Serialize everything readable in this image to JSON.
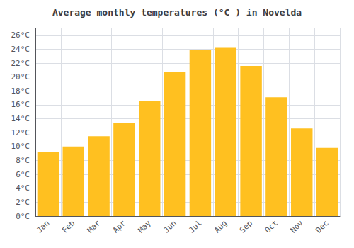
{
  "chart_data": {
    "type": "bar",
    "title": "Average monthly temperatures (°C ) in Novelda",
    "categories": [
      "Jan",
      "Feb",
      "Mar",
      "Apr",
      "May",
      "Jun",
      "Jul",
      "Aug",
      "Sep",
      "Oct",
      "Nov",
      "Dec"
    ],
    "values": [
      9.2,
      10.0,
      11.5,
      13.4,
      16.6,
      20.7,
      23.9,
      24.2,
      21.6,
      17.1,
      12.6,
      9.8
    ],
    "color": "#FFC020",
    "ylim": [
      0,
      27
    ],
    "yticks": [
      {
        "value": 0,
        "label": "0°C"
      },
      {
        "value": 2,
        "label": "2°C"
      },
      {
        "value": 4,
        "label": "4°C"
      },
      {
        "value": 6,
        "label": "6°C"
      },
      {
        "value": 8,
        "label": "8°C"
      },
      {
        "value": 10,
        "label": "10°C"
      },
      {
        "value": 12,
        "label": "12°C"
      },
      {
        "value": 14,
        "label": "14°C"
      },
      {
        "value": 16,
        "label": "16°C"
      },
      {
        "value": 18,
        "label": "18°C"
      },
      {
        "value": 20,
        "label": "20°C"
      },
      {
        "value": 22,
        "label": "22°C"
      },
      {
        "value": 24,
        "label": "24°C"
      },
      {
        "value": 26,
        "label": "26°C"
      }
    ],
    "grid": true
  }
}
